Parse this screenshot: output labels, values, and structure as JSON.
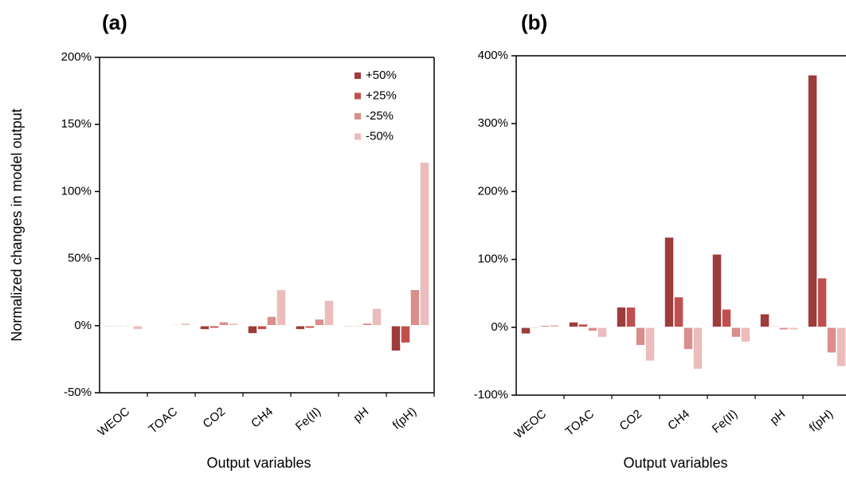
{
  "chart_data": [
    {
      "type": "bar",
      "title": "(a)",
      "x_label": "Output variables",
      "y_label": "Normalized changes in model output",
      "categories": [
        "WEOC",
        "TOAC",
        "CO2",
        "CH4",
        "Fe(II)",
        "pH",
        "f(pH)"
      ],
      "series": [
        {
          "name": "+50%",
          "color": "#9e3b3b",
          "values": [
            -1,
            0,
            -3,
            -6,
            -3,
            -1,
            -19
          ]
        },
        {
          "name": "+25%",
          "color": "#c0504d",
          "values": [
            -1,
            0,
            -2,
            -3,
            -2,
            -1,
            -13
          ]
        },
        {
          "name": "-25%",
          "color": "#d98e8c",
          "values": [
            -1,
            1,
            3,
            7,
            5,
            2,
            27
          ]
        },
        {
          "name": "-50%",
          "color": "#ebbcbb",
          "values": [
            -3,
            2,
            2,
            27,
            19,
            13,
            122
          ]
        }
      ],
      "ylim": [
        -50,
        200
      ],
      "yticks": [
        {
          "value": -50,
          "label": "-50%"
        },
        {
          "value": 0,
          "label": "0%"
        },
        {
          "value": 50,
          "label": "50%"
        },
        {
          "value": 100,
          "label": "100%"
        },
        {
          "value": 150,
          "label": "150%"
        },
        {
          "value": 200,
          "label": "200%"
        }
      ],
      "legend": "upper right"
    },
    {
      "type": "bar",
      "title": "(b)",
      "x_label": "Output variables",
      "categories": [
        "WEOC",
        "TOAC",
        "CO2",
        "CH4",
        "Fe(II)",
        "pH",
        "f(pH)"
      ],
      "series": [
        {
          "color": "#9e3b3b",
          "values": [
            -10,
            8,
            30,
            133,
            108,
            20,
            372
          ]
        },
        {
          "color": "#c0504d",
          "values": [
            -2,
            5,
            30,
            45,
            27,
            2,
            73
          ]
        },
        {
          "color": "#d98e8c",
          "values": [
            3,
            -6,
            -27,
            -33,
            -15,
            -4,
            -38
          ]
        },
        {
          "color": "#ebbcbb",
          "values": [
            4,
            -15,
            -50,
            -62,
            -22,
            -4,
            -58
          ]
        }
      ],
      "ylim": [
        -100,
        400
      ],
      "yticks": [
        {
          "value": -100,
          "label": "-100%"
        },
        {
          "value": 0,
          "label": "0%"
        },
        {
          "value": 100,
          "label": "100%"
        },
        {
          "value": 200,
          "label": "200%"
        },
        {
          "value": 300,
          "label": "300%"
        },
        {
          "value": 400,
          "label": "400%"
        }
      ]
    }
  ]
}
